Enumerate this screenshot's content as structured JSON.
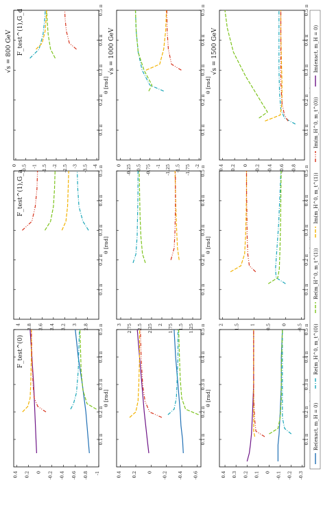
{
  "colors": {
    "re_exact": "#1f6fb4",
    "re_m0_m0": "#19a6b8",
    "re_m1_m1": "#7cc31c",
    "im_m1_m1": "#f2b200",
    "im_m0_m0": "#d6321b",
    "im_exact": "#6d1486"
  },
  "legend": [
    "Re(exact, m_H = 0)",
    "Re(m_H^0, m_t^(0))",
    "Re(m_H^0, m_t^(1))",
    "Im(m_H^0, m_t^(1))",
    "Im(m_H^0, m_t^(0))",
    "Im(exact, m_H = 0)"
  ],
  "chart_data": [
    {
      "type": "line",
      "title": "F_test^(0)",
      "energy": "",
      "xlabel": "θ [rad]",
      "ylim": [
        -1.0,
        0.45
      ],
      "yticks": [
        -1.0,
        -0.8,
        -0.6,
        -0.4,
        -0.2,
        0.0,
        0.2,
        0.4
      ],
      "xticks": [
        "0.1 π",
        "0.2 π",
        "0.3 π",
        "0.4 π",
        "0.5 π"
      ],
      "series": [
        {
          "name": "Re(exact, m_H = 0)",
          "x": [
            0.05,
            0.1,
            0.2,
            0.3,
            0.4,
            0.5
          ],
          "y": [
            -0.84,
            -0.82,
            -0.78,
            -0.72,
            -0.65,
            -0.6
          ]
        },
        {
          "name": "Im(exact, m_H = 0)",
          "x": [
            0.05,
            0.1,
            0.2,
            0.3,
            0.4,
            0.5
          ],
          "y": [
            0.06,
            0.07,
            0.09,
            0.11,
            0.14,
            0.17
          ]
        },
        {
          "name": "Re(m_H^0, m_t^(0))",
          "x": [
            0.21,
            0.23,
            0.27,
            0.35,
            0.42,
            0.5
          ],
          "y": [
            -0.52,
            -0.57,
            -0.62,
            -0.65,
            -0.66,
            -0.67
          ]
        },
        {
          "name": "Re(m_H^0, m_t^(1))",
          "x": [
            0.21,
            0.23,
            0.28,
            0.35,
            0.42,
            0.5
          ],
          "y": [
            -0.96,
            -0.8,
            -0.73,
            -0.7,
            -0.69,
            -0.68
          ]
        },
        {
          "name": "Im(m_H^0, m_t^(1))",
          "x": [
            0.2,
            0.22,
            0.25,
            0.3,
            0.4,
            0.5
          ],
          "y": [
            0.3,
            0.21,
            0.17,
            0.16,
            0.15,
            0.15
          ]
        },
        {
          "name": "Im(m_H^0, m_t^(0))",
          "x": [
            0.2,
            0.22,
            0.25,
            0.3,
            0.4,
            0.5
          ],
          "y": [
            -0.1,
            0.04,
            0.1,
            0.12,
            0.14,
            0.15
          ]
        }
      ]
    },
    {
      "type": "line",
      "title": "F_test^(1),G_a",
      "energy": "",
      "xlabel": "θ [rad]",
      "ylim": [
        2.6,
        4.1
      ],
      "yticks": [
        2.8,
        3.0,
        3.2,
        3.4,
        3.6,
        3.8,
        4.0
      ],
      "xticks": [
        "0.1 π",
        "0.2 π",
        "0.3 π",
        "0.4 π",
        "0.5 π"
      ],
      "series": [
        {
          "name": "Re(m_H^0, m_t^(0))",
          "x": [
            0.3,
            0.33,
            0.38,
            0.44,
            0.5
          ],
          "y": [
            2.78,
            2.88,
            2.95,
            2.97,
            2.98
          ]
        },
        {
          "name": "Re(m_H^0, m_t^(1))",
          "x": [
            0.3,
            0.33,
            0.38,
            0.44,
            0.5
          ],
          "y": [
            3.55,
            3.45,
            3.4,
            3.38,
            3.37
          ]
        },
        {
          "name": "Im(m_H^0, m_t^(1))",
          "x": [
            0.3,
            0.33,
            0.38,
            0.44,
            0.5
          ],
          "y": [
            3.25,
            3.18,
            3.15,
            3.14,
            3.13
          ]
        },
        {
          "name": "Im(m_H^0, m_t^(0))",
          "x": [
            0.3,
            0.33,
            0.38,
            0.44,
            0.5
          ],
          "y": [
            3.95,
            3.78,
            3.72,
            3.69,
            3.68
          ]
        }
      ]
    },
    {
      "type": "line",
      "title": "F_test^(1),G_d",
      "energy": "√s = 800 GeV",
      "xlabel": "θ [rad]",
      "ylim": [
        -4.1,
        0.1
      ],
      "yticks": [
        0.0,
        -0.5,
        -1.0,
        -1.5,
        -2.0,
        -2.5,
        -3.0,
        -3.5,
        -4.0
      ],
      "xticks": [
        "0.1 π",
        "0.2 π",
        "0.3 π",
        "0.4 π",
        "0.5 π"
      ],
      "series": [
        {
          "name": "Re(m_H^0, m_t^(0))",
          "x": [
            0.34,
            0.37,
            0.42,
            0.47,
            0.5
          ],
          "y": [
            -0.7,
            -1.15,
            -1.35,
            -1.43,
            -1.46
          ]
        },
        {
          "name": "Re(m_H^0, m_t^(1))",
          "x": [
            0.34,
            0.37,
            0.42,
            0.47,
            0.5
          ],
          "y": [
            -1.95,
            -1.72,
            -1.6,
            -1.55,
            -1.53
          ]
        },
        {
          "name": "Im(m_H^0, m_t^(1))",
          "x": [
            0.37,
            0.39,
            0.43,
            0.47,
            0.5
          ],
          "y": [
            -1.0,
            -1.3,
            -1.45,
            -1.5,
            -1.52
          ]
        },
        {
          "name": "Im(m_H^0, m_t^(0))",
          "x": [
            0.37,
            0.39,
            0.43,
            0.47,
            0.5
          ],
          "y": [
            -3.0,
            -2.65,
            -2.5,
            -2.44,
            -2.42
          ]
        }
      ]
    },
    {
      "type": "line",
      "title": "",
      "energy": "",
      "xlabel": "θ [rad]",
      "ylim": [
        -0.65,
        0.45
      ],
      "yticks": [
        -0.6,
        -0.4,
        -0.2,
        0.0,
        0.2,
        0.4
      ],
      "xticks": [
        "0.1 π",
        "0.2 π",
        "0.3 π",
        "0.4 π",
        "0.5 π"
      ],
      "series": [
        {
          "name": "Re(exact, m_H = 0)",
          "x": [
            0.05,
            0.1,
            0.15,
            0.2,
            0.3,
            0.4,
            0.5
          ],
          "y": [
            -0.42,
            -0.41,
            -0.39,
            -0.38,
            -0.35,
            -0.32,
            -0.3
          ]
        },
        {
          "name": "Im(exact, m_H = 0)",
          "x": [
            0.05,
            0.1,
            0.15,
            0.2,
            0.3,
            0.4,
            0.5
          ],
          "y": [
            0.03,
            0.05,
            0.07,
            0.09,
            0.12,
            0.15,
            0.18
          ]
        },
        {
          "name": "Re(m_H^0, m_t^(0))",
          "x": [
            0.19,
            0.21,
            0.25,
            0.32,
            0.4,
            0.5
          ],
          "y": [
            -0.22,
            -0.3,
            -0.33,
            -0.34,
            -0.35,
            -0.35
          ]
        },
        {
          "name": "Re(m_H^0, m_t^(1))",
          "x": [
            0.19,
            0.21,
            0.25,
            0.32,
            0.4,
            0.5
          ],
          "y": [
            -0.62,
            -0.45,
            -0.4,
            -0.38,
            -0.37,
            -0.36
          ]
        },
        {
          "name": "Im(m_H^0, m_t^(1))",
          "x": [
            0.18,
            0.2,
            0.24,
            0.3,
            0.4,
            0.5
          ],
          "y": [
            0.28,
            0.2,
            0.17,
            0.16,
            0.15,
            0.15
          ]
        },
        {
          "name": "Im(m_H^0, m_t^(0))",
          "x": [
            0.18,
            0.2,
            0.24,
            0.3,
            0.4,
            0.5
          ],
          "y": [
            -0.14,
            0.02,
            0.08,
            0.11,
            0.13,
            0.14
          ]
        }
      ]
    },
    {
      "type": "line",
      "title": "",
      "energy": "",
      "xlabel": "θ [rad]",
      "ylim": [
        1.05,
        3.1
      ],
      "yticks": [
        1.25,
        1.5,
        1.75,
        2.0,
        2.25,
        2.5,
        2.75,
        3.0
      ],
      "xticks": [
        "0.1 π",
        "0.2 π",
        "0.3 π",
        "0.4 π",
        "0.5 π"
      ],
      "series": [
        {
          "name": "Re(m_H^0, m_t^(0))",
          "x": [
            0.19,
            0.22,
            0.28,
            0.35,
            0.42,
            0.5
          ],
          "y": [
            2.7,
            2.63,
            2.6,
            2.59,
            2.58,
            2.58
          ]
        },
        {
          "name": "Re(m_H^0, m_t^(1))",
          "x": [
            0.19,
            0.22,
            0.28,
            0.35,
            0.42,
            0.5
          ],
          "y": [
            2.4,
            2.47,
            2.51,
            2.53,
            2.54,
            2.55
          ]
        },
        {
          "name": "Im(m_H^0, m_t^(1))",
          "x": [
            0.2,
            0.24,
            0.3,
            0.38,
            0.44,
            0.5
          ],
          "y": [
            1.58,
            1.62,
            1.64,
            1.66,
            1.67,
            1.68
          ]
        },
        {
          "name": "Im(m_H^0, m_t^(0))",
          "x": [
            0.2,
            0.24,
            0.3,
            0.38,
            0.44,
            0.5
          ],
          "y": [
            1.78,
            1.7,
            1.68,
            1.67,
            1.67,
            1.67
          ]
        }
      ]
    },
    {
      "type": "line",
      "title": "",
      "energy": "√s = 1000 GeV",
      "xlabel": "θ [rad]",
      "ylim": [
        -2.05,
        0.1
      ],
      "yticks": [
        0.0,
        -0.25,
        -0.5,
        -0.75,
        -1.0,
        -1.25,
        -1.5,
        -1.75,
        -2.0
      ],
      "xticks": [
        "0.1 π",
        "0.2 π",
        "0.3 π",
        "0.4 π",
        "0.5 π"
      ],
      "series": [
        {
          "name": "Re(m_H^0, m_t^(0))",
          "x": [
            0.23,
            0.25,
            0.3,
            0.36,
            0.43,
            0.5
          ],
          "y": [
            -1.1,
            -0.75,
            -0.55,
            -0.45,
            -0.4,
            -0.38
          ]
        },
        {
          "name": "Re(m_H^0, m_t^(1))",
          "x": [
            0.23,
            0.25,
            0.3,
            0.36,
            0.43,
            0.5
          ],
          "y": [
            -0.72,
            -0.8,
            -0.6,
            -0.45,
            -0.4,
            -0.38
          ]
        },
        {
          "name": "Im(m_H^0, m_t^(1))",
          "x": [
            0.3,
            0.32,
            0.37,
            0.43,
            0.5
          ],
          "y": [
            -0.65,
            -1.0,
            -1.1,
            -1.15,
            -1.17
          ]
        },
        {
          "name": "Im(m_H^0, m_t^(0))",
          "x": [
            0.3,
            0.32,
            0.37,
            0.43,
            0.5
          ],
          "y": [
            -1.55,
            -1.3,
            -1.22,
            -1.19,
            -1.18
          ]
        }
      ]
    },
    {
      "type": "line",
      "title": "",
      "energy": "",
      "xlabel": "θ [rad]",
      "ylim": [
        -0.32,
        0.45
      ],
      "yticks": [
        -0.3,
        -0.2,
        -0.1,
        0.0,
        0.1,
        0.2,
        0.3,
        0.4
      ],
      "xticks": [
        "0.1 π",
        "0.2 π",
        "0.3 π",
        "0.4 π",
        "0.5 π"
      ],
      "series": [
        {
          "name": "Re(exact, m_H = 0)",
          "x": [
            0.02,
            0.05,
            0.08,
            0.12,
            0.2,
            0.3,
            0.4,
            0.5
          ],
          "y": [
            -0.08,
            -0.08,
            -0.08,
            -0.09,
            -0.1,
            -0.11,
            -0.11,
            -0.12
          ]
        },
        {
          "name": "Im(exact, m_H = 0)",
          "x": [
            0.02,
            0.05,
            0.08,
            0.12,
            0.2,
            0.3,
            0.4,
            0.5
          ],
          "y": [
            0.2,
            0.18,
            0.17,
            0.16,
            0.15,
            0.14,
            0.14,
            0.14
          ]
        },
        {
          "name": "Re(m_H^0, m_t^(0))",
          "x": [
            0.12,
            0.14,
            0.18,
            0.25,
            0.35,
            0.5
          ],
          "y": [
            -0.2,
            -0.14,
            -0.12,
            -0.12,
            -0.12,
            -0.12
          ]
        },
        {
          "name": "Re(m_H^0, m_t^(1))",
          "x": [
            0.12,
            0.14,
            0.18,
            0.25,
            0.35,
            0.5
          ],
          "y": [
            0.0,
            -0.08,
            -0.1,
            -0.11,
            -0.11,
            -0.12
          ]
        },
        {
          "name": "Im(m_H^0, m_t^(1))",
          "x": [
            0.11,
            0.13,
            0.17,
            0.25,
            0.35,
            0.5
          ],
          "y": [
            0.13,
            0.14,
            0.14,
            0.14,
            0.14,
            0.14
          ]
        },
        {
          "name": "Im(m_H^0, m_t^(0))",
          "x": [
            0.11,
            0.13,
            0.17,
            0.25,
            0.35,
            0.5
          ],
          "y": [
            0.04,
            0.12,
            0.13,
            0.14,
            0.14,
            0.14
          ]
        }
      ]
    },
    {
      "type": "line",
      "title": "",
      "energy": "",
      "xlabel": "θ [rad]",
      "ylim": [
        -0.6,
        2.1
      ],
      "yticks": [
        -0.5,
        0.0,
        0.5,
        1.0,
        1.5,
        2.0
      ],
      "xticks": [
        "0.1 π",
        "0.2 π",
        "0.3 π",
        "0.4 π",
        "0.5 π"
      ],
      "series": [
        {
          "name": "Re(m_H^0, m_t^(0))",
          "x": [
            0.12,
            0.14,
            0.17,
            0.23,
            0.32,
            0.42,
            0.5
          ],
          "y": [
            0.0,
            0.3,
            0.32,
            0.28,
            0.22,
            0.18,
            0.15
          ]
        },
        {
          "name": "Re(m_H^0, m_t^(1))",
          "x": [
            0.12,
            0.14,
            0.17,
            0.23,
            0.32,
            0.42,
            0.5
          ],
          "y": [
            0.55,
            0.25,
            0.2,
            0.18,
            0.16,
            0.15,
            0.14
          ]
        },
        {
          "name": "Im(m_H^0, m_t^(1))",
          "x": [
            0.16,
            0.18,
            0.22,
            0.28,
            0.36,
            0.44,
            0.5
          ],
          "y": [
            1.75,
            1.42,
            1.3,
            1.27,
            1.25,
            1.24,
            1.24
          ]
        },
        {
          "name": "Im(m_H^0, m_t^(0))",
          "x": [
            0.16,
            0.18,
            0.22,
            0.28,
            0.36,
            0.44,
            0.5
          ],
          "y": [
            0.95,
            1.15,
            1.2,
            1.22,
            1.23,
            1.24,
            1.24
          ]
        }
      ]
    },
    {
      "type": "line",
      "title": "",
      "energy": "√s = 1500 GeV",
      "xlabel": "θ [rad]",
      "ylim": [
        -0.95,
        0.45
      ],
      "yticks": [
        0.4,
        0.2,
        0.0,
        -0.2,
        -0.4,
        -0.6,
        -0.8
      ],
      "xticks": [
        "0.1 π",
        "0.2 π",
        "0.3 π",
        "0.4 π",
        "0.5 π"
      ],
      "series": [
        {
          "name": "Re(m_H^0, m_t^(0))",
          "x": [
            0.12,
            0.14,
            0.17,
            0.22,
            0.3,
            0.4,
            0.5
          ],
          "y": [
            -0.8,
            -0.62,
            -0.56,
            -0.54,
            -0.53,
            -0.53,
            -0.53
          ]
        },
        {
          "name": "Re(m_H^0, m_t^(1))",
          "x": [
            0.14,
            0.16,
            0.2,
            0.28,
            0.36,
            0.44,
            0.5
          ],
          "y": [
            -0.2,
            -0.34,
            -0.22,
            0.02,
            0.22,
            0.32,
            0.36
          ]
        },
        {
          "name": "Im(m_H^0, m_t^(1))",
          "x": [
            0.13,
            0.15,
            0.19,
            0.26,
            0.34,
            0.42,
            0.5
          ],
          "y": [
            -0.3,
            -0.55,
            -0.58,
            -0.58,
            -0.57,
            -0.56,
            -0.56
          ]
        },
        {
          "name": "Im(m_H^0, m_t^(0))",
          "x": [
            0.13,
            0.15,
            0.19,
            0.26,
            0.34,
            0.42,
            0.5
          ],
          "y": [
            -0.68,
            -0.62,
            -0.58,
            -0.56,
            -0.56,
            -0.56,
            -0.56
          ]
        }
      ]
    }
  ]
}
